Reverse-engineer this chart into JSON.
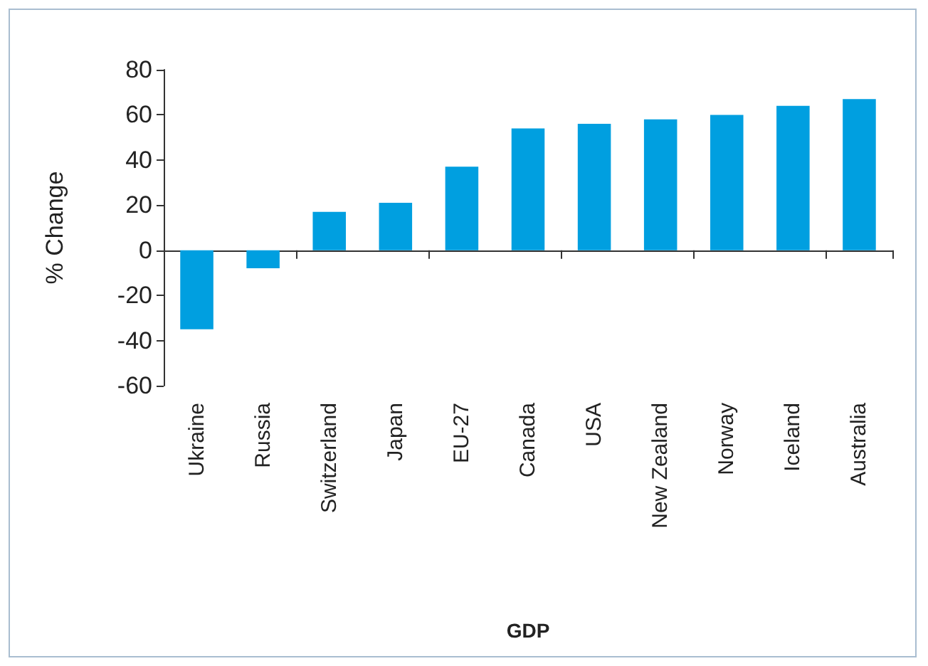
{
  "chart_data": {
    "type": "bar",
    "xlabel": "GDP",
    "ylabel": "% Change",
    "categories": [
      "Ukraine",
      "Russia",
      "Switzerland",
      "Japan",
      "EU-27",
      "Canada",
      "USA",
      "New Zealand",
      "Norway",
      "Iceland",
      "Australia"
    ],
    "values": [
      -35,
      -8,
      17,
      21,
      37,
      54,
      56,
      58,
      60,
      64,
      67
    ],
    "color": "#009fe0",
    "ylim": [
      -60,
      80
    ],
    "yticks": [
      -60,
      -40,
      -20,
      0,
      20,
      40,
      60,
      80
    ]
  }
}
